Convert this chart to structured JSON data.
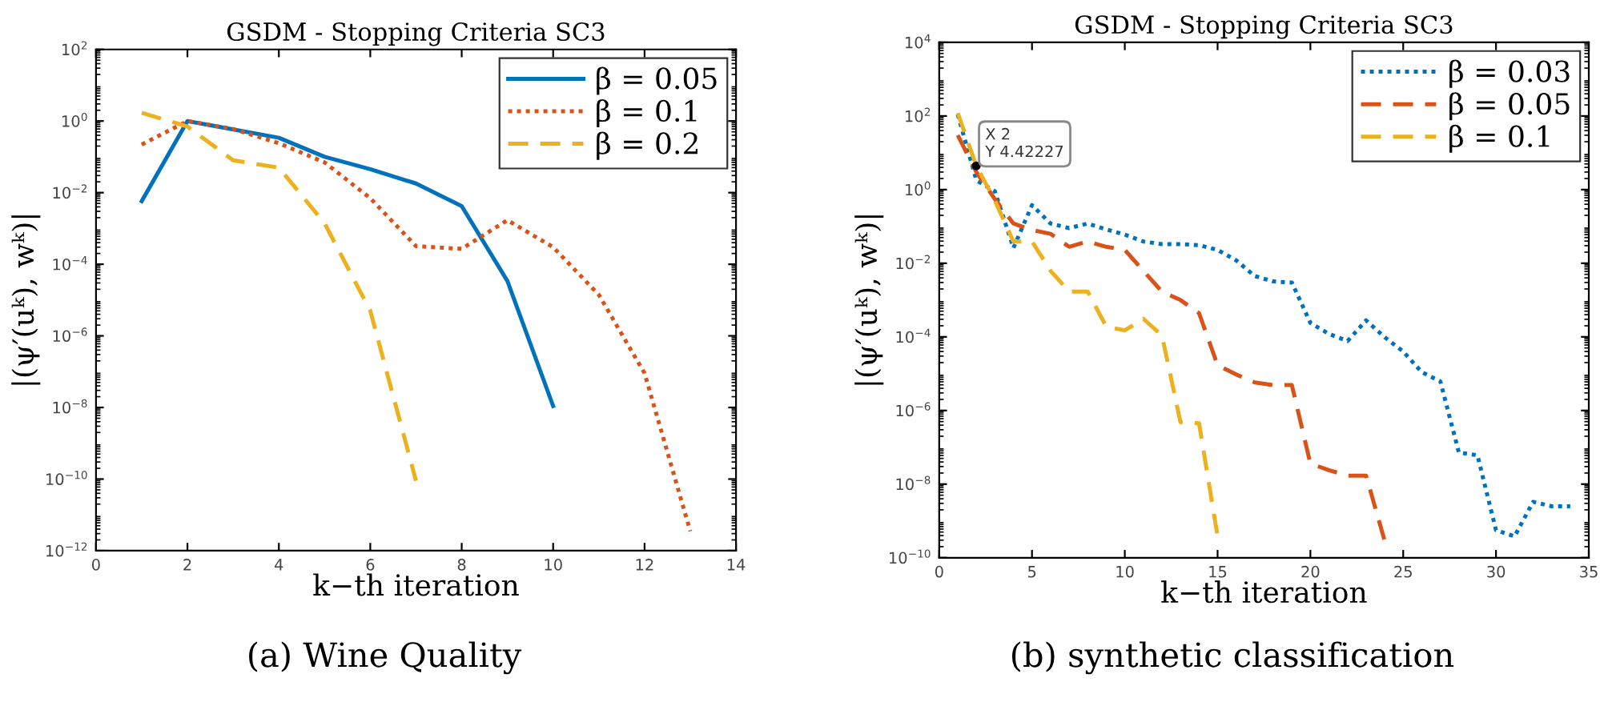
{
  "chart_data": [
    {
      "type": "line",
      "title": "GSDM - Stopping Criteria SC3",
      "xlabel": "k−th iteration",
      "ylabel": "|(ψ′(uᵏ), wᵏ)|",
      "log": "y",
      "grid": false,
      "legend": "top right",
      "xlim": [
        0,
        14
      ],
      "xticks": [
        0,
        2,
        4,
        6,
        8,
        10,
        12,
        14
      ],
      "ylim": [
        1e-12,
        100
      ],
      "yticks": [
        {
          "value": 1e-12,
          "label": "10$^{−12}$"
        },
        {
          "value": 1e-10,
          "label": "10$^{−10}$"
        },
        {
          "value": 1e-08,
          "label": "10$^{−8}$"
        },
        {
          "value": 1e-06,
          "label": "10$^{−6}$"
        },
        {
          "value": 0.0001,
          "label": "10$^{−4}$"
        },
        {
          "value": 0.01,
          "label": "10$^{−2}$"
        },
        {
          "value": 1,
          "label": "10$^{0}$"
        },
        {
          "value": 100,
          "label": "10$^{2}$"
        }
      ],
      "annotations": [
        "(a) Wine Quality"
      ],
      "series": [
        {
          "name": "β = 0.05",
          "color": "#0072bd",
          "line_style": "solid",
          "x": [
            1,
            2,
            4,
            5,
            6,
            7,
            8,
            9,
            10
          ],
          "values": [
            0.0058,
            1.0,
            0.34,
            0.1,
            0.045,
            0.018,
            0.0042,
            3.4e-05,
            1.1e-08
          ]
        },
        {
          "name": "β = 0.1",
          "color": "#d95319",
          "line_style": "dotted",
          "x": [
            1,
            2,
            3,
            4,
            5,
            6,
            7,
            8,
            9,
            10,
            11,
            12,
            13
          ],
          "values": [
            0.22,
            1.0,
            0.6,
            0.24,
            0.07,
            0.007,
            0.00032,
            0.00027,
            0.0017,
            0.0003,
            1.4e-05,
            9e-08,
            3.5e-12
          ]
        },
        {
          "name": "β = 0.2",
          "color": "#edb120",
          "line_style": "dashed",
          "x": [
            1,
            2,
            3,
            4,
            5,
            6,
            7
          ],
          "values": [
            1.7,
            0.7,
            0.08,
            0.05,
            0.0014,
            5e-06,
            9e-11
          ]
        }
      ]
    },
    {
      "type": "line",
      "title": "GSDM - Stopping Criteria SC3",
      "xlabel": "k−th iteration",
      "ylabel": "|(ψ′(uᵏ), wᵏ)|",
      "log": "y",
      "grid": false,
      "legend": "top right",
      "xlim": [
        0,
        35
      ],
      "xticks": [
        0,
        5,
        10,
        15,
        20,
        25,
        30,
        35
      ],
      "ylim": [
        1e-10,
        10000
      ],
      "yticks": [
        {
          "value": 1e-10,
          "label": "10$^{−10}$"
        },
        {
          "value": 1e-08,
          "label": "10$^{−8}$"
        },
        {
          "value": 1e-06,
          "label": "10$^{−6}$"
        },
        {
          "value": 0.0001,
          "label": "10$^{−4}$"
        },
        {
          "value": 0.01,
          "label": "10$^{−2}$"
        },
        {
          "value": 1,
          "label": "10$^{0}$"
        },
        {
          "value": 100,
          "label": "10$^{2}$"
        },
        {
          "value": 10000,
          "label": "10$^{4}$"
        }
      ],
      "annotations": [
        {
          "text": "X 2\nY 4.42227",
          "x": 2,
          "y": 4.42227
        },
        "(b) synthetic classification"
      ],
      "series": [
        {
          "name": "β = 0.03",
          "color": "#0072bd",
          "line_style": "dotted",
          "x": [
            1,
            2,
            3,
            4,
            5,
            6,
            7,
            8,
            9,
            10,
            11,
            12,
            13,
            14,
            15,
            16,
            17,
            18,
            19,
            20,
            21,
            22,
            23,
            24,
            25,
            26,
            27,
            28,
            29,
            30,
            31,
            32,
            33,
            34
          ],
          "values": [
            110,
            1.8,
            0.9,
            0.026,
            0.38,
            0.12,
            0.09,
            0.12,
            0.083,
            0.06,
            0.039,
            0.033,
            0.033,
            0.031,
            0.023,
            0.012,
            0.0045,
            0.0032,
            0.003,
            0.00024,
            0.00012,
            7.7e-05,
            0.00028,
            9.8e-05,
            4e-05,
            1.1e-05,
            6.2e-06,
            7.2e-08,
            6.1e-08,
            5.6e-10,
            3.8e-10,
            3.3e-09,
            2.5e-09,
            2.5e-09
          ]
        },
        {
          "name": "β = 0.05",
          "color": "#d95319",
          "line_style": "dashed",
          "x": [
            1,
            2,
            3,
            4,
            5,
            6,
            7,
            8,
            9,
            10,
            11,
            12,
            13,
            14,
            15,
            16,
            17,
            18,
            19,
            20,
            21,
            22,
            23,
            24
          ],
          "values": [
            30,
            3,
            0.55,
            0.12,
            0.08,
            0.063,
            0.028,
            0.039,
            0.028,
            0.023,
            0.0062,
            0.0017,
            0.001,
            0.00044,
            1.7e-05,
            9.5e-06,
            5.8e-06,
            4.9e-06,
            4.9e-06,
            3.6e-08,
            2.4e-08,
            1.7e-08,
            1.7e-08,
            2.9e-10
          ]
        },
        {
          "name": "β = 0.1",
          "color": "#edb120",
          "line_style": "dashed",
          "x": [
            1,
            2,
            3,
            4,
            5,
            6,
            7,
            8,
            9,
            10,
            11,
            12,
            13,
            14,
            15
          ],
          "values": [
            120,
            4.42227,
            0.5,
            0.039,
            0.039,
            0.0062,
            0.0017,
            0.0017,
            0.00019,
            0.00015,
            0.00031,
            0.00011,
            4.8e-07,
            4.5e-07,
            3.8e-10
          ]
        }
      ]
    }
  ]
}
